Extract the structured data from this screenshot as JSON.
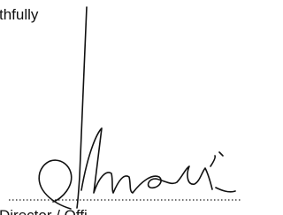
{
  "closing": "thfully",
  "signatory_title": "Director / Offi"
}
